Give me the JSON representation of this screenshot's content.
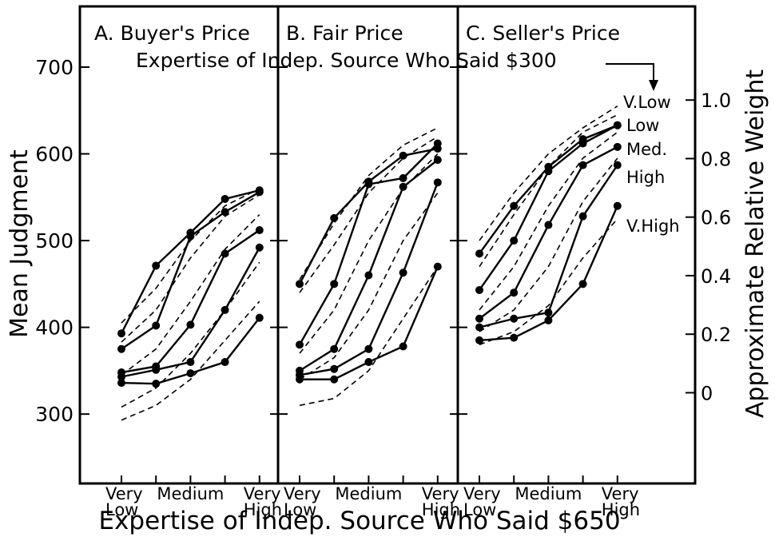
{
  "chart_data": {
    "type": "line",
    "subtitle": "Expertise of Indep. Source Who Said $300",
    "ylabel": "Mean Judgment",
    "y2label": "Approximate Relative Weight",
    "xlabel": "Expertise of Indep. Source Who Said $650",
    "categories": [
      "Very Low",
      null,
      "Medium",
      null,
      "Very High"
    ],
    "ylim": [
      220,
      770
    ],
    "yticks": [
      300,
      400,
      500,
      600,
      700
    ],
    "y2lim": [
      -0.31,
      1.32
    ],
    "y2ticks": [
      0,
      0.2,
      0.4,
      0.6,
      0.8,
      {
        "value": 1,
        "label": "1.0"
      }
    ],
    "color": "#000000",
    "curve_labels": [
      "V.Low",
      "Low",
      "Med.",
      "High",
      "V.High"
    ],
    "panels": [
      {
        "title": "A.  Buyer's Price",
        "series": [
          {
            "values": [
              393,
              471,
              509,
              548,
              558
            ]
          },
          {
            "values": [
              375,
              402,
              505,
              533,
              556
            ]
          },
          {
            "values": [
              348,
              355,
              403,
              485,
              512
            ]
          },
          {
            "values": [
              343,
              351,
              360,
              420,
              492
            ]
          },
          {
            "values": [
              336,
              335,
              347,
              360,
              411
            ]
          }
        ],
        "predicted": [
          {
            "values": [
              405,
              445,
              500,
              540,
              560
            ]
          },
          {
            "values": [
              383,
              420,
              480,
              528,
              553
            ]
          },
          {
            "values": [
              345,
              375,
              430,
              490,
              530
            ]
          },
          {
            "values": [
              308,
              330,
              370,
              420,
              475
            ]
          },
          {
            "values": [
              293,
              310,
              340,
              385,
              430
            ]
          }
        ]
      },
      {
        "title": "B.  Fair Price",
        "series": [
          {
            "values": [
              450,
              526,
              568,
              598,
              606
            ]
          },
          {
            "values": [
              380,
              450,
              565,
              572,
              612
            ]
          },
          {
            "values": [
              350,
              375,
              460,
              562,
              593
            ]
          },
          {
            "values": [
              345,
              352,
              375,
              463,
              567
            ]
          },
          {
            "values": [
              340,
              340,
              360,
              378,
              470
            ]
          }
        ],
        "predicted": [
          {
            "values": [
              455,
              520,
              575,
              610,
              630
            ]
          },
          {
            "values": [
              440,
              495,
              555,
              595,
              620
            ]
          },
          {
            "values": [
              370,
              420,
              500,
              560,
              600
            ]
          },
          {
            "values": [
              340,
              365,
              420,
              500,
              555
            ]
          },
          {
            "values": [
              310,
              318,
              350,
              410,
              470
            ]
          }
        ]
      },
      {
        "title": "C.  Seller's Price",
        "series": [
          {
            "values": [
              485,
              540,
              585,
              617,
              633
            ]
          },
          {
            "values": [
              443,
              500,
              580,
              612,
              633
            ]
          },
          {
            "values": [
              410,
              440,
              518,
              587,
              608
            ]
          },
          {
            "values": [
              400,
              410,
              417,
              528,
              587
            ]
          },
          {
            "values": [
              385,
              388,
              408,
              450,
              540
            ]
          }
        ],
        "predicted": [
          {
            "values": [
              500,
              555,
              600,
              630,
              655
            ]
          },
          {
            "values": [
              470,
              530,
              585,
              625,
              645
            ]
          },
          {
            "values": [
              420,
              470,
              540,
              595,
              625
            ]
          },
          {
            "values": [
              395,
              420,
              470,
              545,
              595
            ]
          },
          {
            "values": [
              380,
              395,
              425,
              480,
              525
            ]
          }
        ]
      }
    ]
  }
}
